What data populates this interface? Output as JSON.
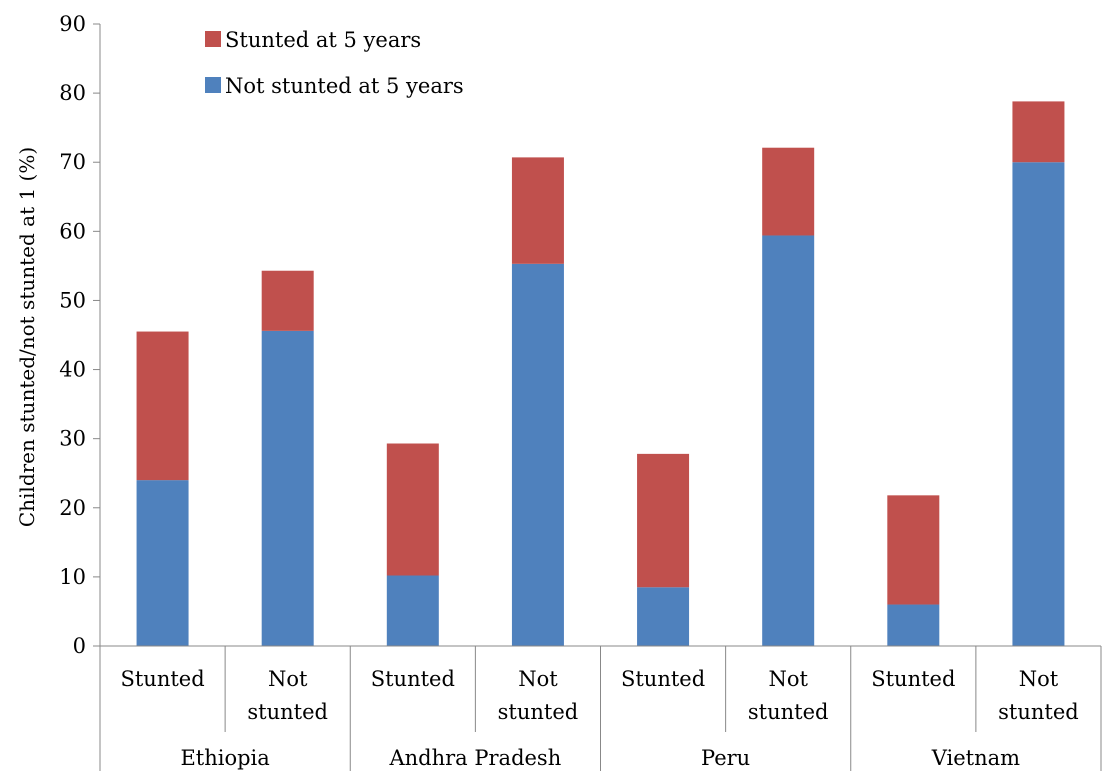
{
  "chart_data": {
    "type": "bar",
    "stacked": true,
    "title": "",
    "xlabel": "",
    "ylabel": "Children stunted/not stunted at 1 (%)",
    "ylim": [
      0,
      90
    ],
    "yticks": [
      0,
      10,
      20,
      30,
      40,
      50,
      60,
      70,
      80,
      90
    ],
    "grid": false,
    "legend_position": "top-left",
    "groups": [
      {
        "label": "Ethiopia",
        "categories": [
          "Stunted",
          "Not stunted"
        ]
      },
      {
        "label": "Andhra Pradesh",
        "categories": [
          "Stunted",
          "Not stunted"
        ]
      },
      {
        "label": "Peru",
        "categories": [
          "Stunted",
          "Not stunted"
        ]
      },
      {
        "label": "Vietnam",
        "categories": [
          "Stunted",
          "Not stunted"
        ]
      }
    ],
    "series": [
      {
        "name": "Not stunted at 5 years",
        "color": "#4f81bd",
        "values": [
          24.0,
          45.6,
          10.2,
          55.3,
          8.5,
          59.4,
          6.0,
          70.0
        ]
      },
      {
        "name": "Stunted at 5 years",
        "color": "#c0504d",
        "values": [
          21.5,
          8.7,
          19.1,
          15.4,
          19.3,
          12.7,
          15.8,
          8.8
        ]
      }
    ],
    "legend_order": [
      "Stunted at 5 years",
      "Not stunted at 5 years"
    ]
  }
}
